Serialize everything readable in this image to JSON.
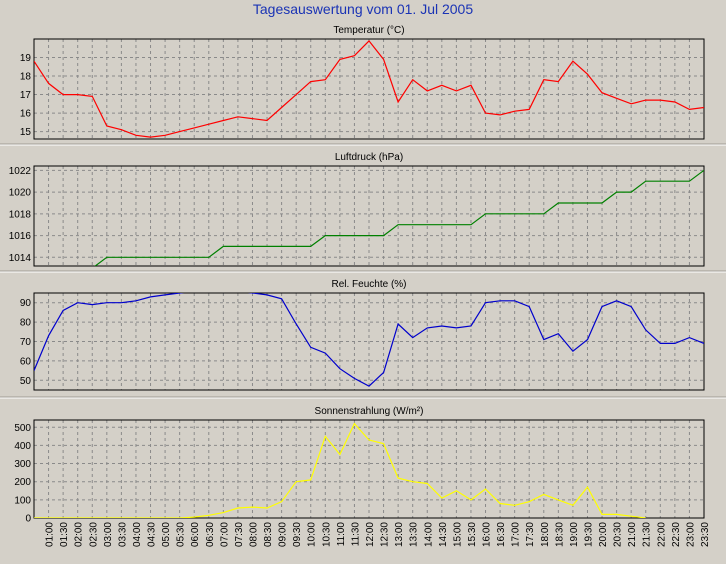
{
  "page_title": "Tagesauswertung vom 01. Jul 2005",
  "colors": {
    "background": "#d4d0c8",
    "title": "#1a33b5",
    "grid": "#8a8a8a"
  },
  "time_labels": [
    "01:00",
    "01:30",
    "02:00",
    "02:30",
    "03:00",
    "03:30",
    "04:00",
    "04:30",
    "05:00",
    "05:30",
    "06:00",
    "06:30",
    "07:00",
    "07:30",
    "08:00",
    "08:30",
    "09:00",
    "09:30",
    "10:00",
    "10:30",
    "11:00",
    "11:30",
    "12:00",
    "12:30",
    "13:00",
    "13:30",
    "14:00",
    "14:30",
    "15:00",
    "15:30",
    "16:00",
    "16:30",
    "17:00",
    "17:30",
    "18:00",
    "18:30",
    "19:00",
    "19:30",
    "20:00",
    "20:30",
    "21:00",
    "21:30",
    "22:00",
    "22:30",
    "23:00",
    "23:30"
  ],
  "chart_data": [
    {
      "type": "line",
      "title": "Temperatur (°C)",
      "color": "#ff0000",
      "ylim": [
        14.6,
        20.0
      ],
      "yticks": [
        15,
        16,
        17,
        18,
        19
      ],
      "x_range": [
        "00:30",
        "23:30"
      ],
      "x": [
        "00:30",
        "01:00",
        "01:30",
        "02:00",
        "02:30",
        "03:00",
        "03:30",
        "04:00",
        "04:30",
        "05:00",
        "05:30",
        "06:00",
        "06:30",
        "07:00",
        "07:30",
        "08:00",
        "08:30",
        "09:00",
        "09:30",
        "10:00",
        "10:30",
        "11:00",
        "11:30",
        "12:00",
        "12:30",
        "13:00",
        "13:30",
        "14:00",
        "14:30",
        "15:00",
        "15:30",
        "16:00",
        "16:30",
        "17:00",
        "17:30",
        "18:00",
        "18:30",
        "19:00",
        "19:30",
        "20:00",
        "20:30",
        "21:00",
        "21:30",
        "22:00",
        "22:30",
        "23:00",
        "23:30"
      ],
      "values": [
        18.8,
        17.6,
        17.0,
        17.0,
        16.9,
        15.3,
        15.1,
        14.8,
        14.7,
        14.8,
        15.0,
        15.2,
        15.4,
        15.6,
        15.8,
        15.7,
        15.6,
        16.3,
        17.0,
        17.7,
        17.8,
        18.9,
        19.1,
        19.9,
        18.9,
        16.6,
        17.8,
        17.2,
        17.5,
        17.2,
        17.5,
        16.0,
        15.9,
        16.1,
        16.2,
        17.8,
        17.7,
        18.8,
        18.1,
        17.1,
        16.8,
        16.5,
        16.7,
        16.7,
        16.6,
        16.2,
        16.3
      ]
    },
    {
      "type": "line",
      "title": "Luftdruck (hPa)",
      "color": "#008000",
      "ylim": [
        1013.2,
        1022.4
      ],
      "yticks": [
        1014,
        1016,
        1018,
        1020,
        1022
      ],
      "x_range": [
        "00:30",
        "23:30"
      ],
      "x": [
        "00:30",
        "01:00",
        "01:30",
        "02:00",
        "02:30",
        "03:00",
        "03:30",
        "04:00",
        "04:30",
        "05:00",
        "05:30",
        "06:00",
        "06:30",
        "07:00",
        "07:30",
        "08:00",
        "08:30",
        "09:00",
        "09:30",
        "10:00",
        "10:30",
        "11:00",
        "11:30",
        "12:00",
        "12:30",
        "13:00",
        "13:30",
        "14:00",
        "14:30",
        "15:00",
        "15:30",
        "16:00",
        "16:30",
        "17:00",
        "17:30",
        "18:00",
        "18:30",
        "19:00",
        "19:30",
        "20:00",
        "20:30",
        "21:00",
        "21:30",
        "22:00",
        "22:30",
        "23:00",
        "23:30"
      ],
      "values": [
        1013,
        1013,
        1013,
        1013,
        1013,
        1014,
        1014,
        1014,
        1014,
        1014,
        1014,
        1014,
        1014,
        1015,
        1015,
        1015,
        1015,
        1015,
        1015,
        1015,
        1016,
        1016,
        1016,
        1016,
        1016,
        1017,
        1017,
        1017,
        1017,
        1017,
        1017,
        1018,
        1018,
        1018,
        1018,
        1018,
        1019,
        1019,
        1019,
        1019,
        1020,
        1020,
        1021,
        1021,
        1021,
        1021,
        1022
      ]
    },
    {
      "type": "line",
      "title": "Rel. Feuchte (%)",
      "color": "#0000cc",
      "ylim": [
        45,
        95
      ],
      "yticks": [
        50,
        60,
        70,
        80,
        90
      ],
      "x_range": [
        "00:30",
        "23:30"
      ],
      "x": [
        "00:30",
        "01:00",
        "01:30",
        "02:00",
        "02:30",
        "03:00",
        "03:30",
        "04:00",
        "04:30",
        "05:00",
        "05:30",
        "06:00",
        "06:30",
        "07:00",
        "07:30",
        "08:00",
        "08:30",
        "09:00",
        "09:30",
        "10:00",
        "10:30",
        "11:00",
        "11:30",
        "12:00",
        "12:30",
        "13:00",
        "13:30",
        "14:00",
        "14:30",
        "15:00",
        "15:30",
        "16:00",
        "16:30",
        "17:00",
        "17:30",
        "18:00",
        "18:30",
        "19:00",
        "19:30",
        "20:00",
        "20:30",
        "21:00",
        "21:30",
        "22:00",
        "22:30",
        "23:00",
        "23:30"
      ],
      "values": [
        55,
        73,
        86,
        90,
        89,
        90,
        90,
        91,
        93,
        94,
        95,
        96,
        96,
        96,
        96,
        95,
        94,
        92,
        79,
        67,
        64,
        56,
        51,
        47,
        54,
        79,
        72,
        77,
        78,
        77,
        78,
        90,
        91,
        91,
        88,
        71,
        74,
        65,
        71,
        88,
        91,
        88,
        76,
        69,
        69,
        72,
        69
      ]
    },
    {
      "type": "line",
      "title": "Sonnenstrahlung (W/m²)",
      "color": "#ffff00",
      "ylim": [
        0,
        540
      ],
      "yticks": [
        0,
        100,
        200,
        300,
        400,
        500
      ],
      "x_range": [
        "00:30",
        "23:30"
      ],
      "x": [
        "00:30",
        "01:00",
        "01:30",
        "02:00",
        "02:30",
        "03:00",
        "03:30",
        "04:00",
        "04:30",
        "05:00",
        "05:30",
        "06:00",
        "06:30",
        "07:00",
        "07:30",
        "08:00",
        "08:30",
        "09:00",
        "09:30",
        "10:00",
        "10:30",
        "11:00",
        "11:30",
        "12:00",
        "12:30",
        "13:00",
        "13:30",
        "14:00",
        "14:30",
        "15:00",
        "15:30",
        "16:00",
        "16:30",
        "17:00",
        "17:30",
        "18:00",
        "18:30",
        "19:00",
        "19:30",
        "20:00",
        "20:30",
        "21:00",
        "21:30"
      ],
      "values": [
        0,
        0,
        0,
        0,
        0,
        0,
        0,
        0,
        0,
        0,
        0,
        5,
        15,
        30,
        55,
        60,
        55,
        90,
        200,
        210,
        450,
        350,
        520,
        430,
        410,
        220,
        200,
        190,
        110,
        150,
        100,
        160,
        80,
        70,
        90,
        130,
        100,
        70,
        170,
        20,
        20,
        10,
        0
      ]
    }
  ]
}
